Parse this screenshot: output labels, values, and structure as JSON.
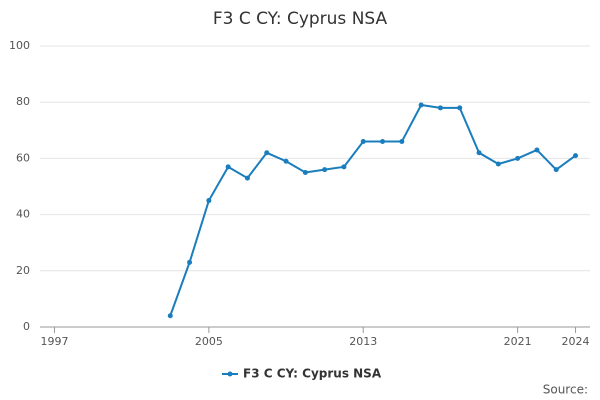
{
  "chart_data": {
    "type": "line",
    "title": "F3 C CY: Cyprus NSA",
    "x": [
      2003,
      2004,
      2005,
      2006,
      2007,
      2008,
      2009,
      2010,
      2011,
      2012,
      2013,
      2014,
      2015,
      2016,
      2017,
      2018,
      2019,
      2020,
      2021,
      2022,
      2023,
      2024
    ],
    "series": [
      {
        "name": "F3 C CY: Cyprus NSA",
        "color": "#1a7dbd",
        "values": [
          4,
          23,
          45,
          57,
          53,
          62,
          59,
          55,
          56,
          57,
          66,
          66,
          66,
          79,
          78,
          78,
          62,
          58,
          60,
          63,
          56,
          61
        ]
      }
    ],
    "xlim": [
      1996.25,
      2024.75
    ],
    "xticks": [
      1997,
      2005,
      2013,
      2021,
      2024
    ],
    "ylim": [
      0,
      100
    ],
    "yticks": [
      0,
      20,
      40,
      60,
      80,
      100
    ],
    "grid": true,
    "legend": "bottom",
    "source": "Source:"
  }
}
